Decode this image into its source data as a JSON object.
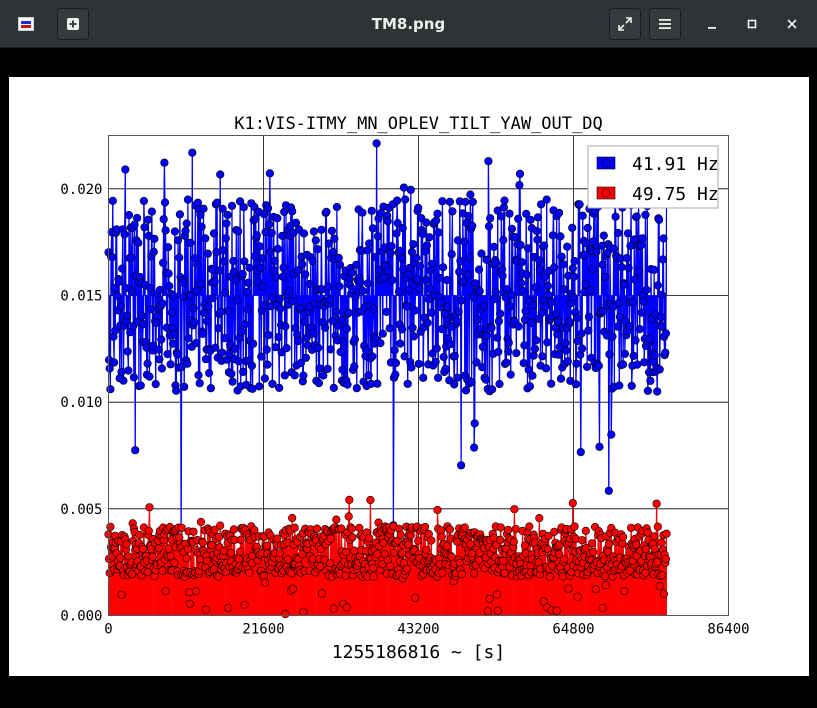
{
  "window": {
    "title": "TM8.png",
    "icons": {
      "app": "image-viewer-app-icon",
      "new": "new-tab-icon",
      "fullscreen": "fullscreen-icon",
      "menu": "hamburger-menu-icon",
      "minimize": "minimize-icon",
      "maximize": "maximize-icon",
      "close": "close-icon"
    }
  },
  "chart_data": {
    "type": "line",
    "title": "K1:VIS-ITMY_MN_OPLEV_TILT_YAW_OUT_DQ",
    "xlabel": "1255186816 ~ [s]",
    "ylabel": "",
    "xlim": [
      0,
      86400
    ],
    "ylim": [
      0,
      0.0225
    ],
    "x_ticks": [
      0,
      21600,
      43200,
      64800,
      86400
    ],
    "x_tick_labels": [
      "0",
      "21600",
      "43200",
      "64800",
      "86400"
    ],
    "y_ticks": [
      0.0,
      0.005,
      0.01,
      0.015,
      0.02
    ],
    "y_tick_labels": [
      "0.000",
      "0.005",
      "0.010",
      "0.015",
      "0.020"
    ],
    "grid": true,
    "legend_position": "top-right",
    "series": [
      {
        "name": "41.91 Hz",
        "color": "#0000ff",
        "baseline": 0.015,
        "typical_range": [
          0.0105,
          0.0195
        ],
        "min": 0.0021,
        "max": 0.0225,
        "marker": "circle",
        "stem_style": true
      },
      {
        "name": "49.75 Hz",
        "color": "#ff0000",
        "baseline": 0.0,
        "typical_range": [
          0.0018,
          0.0042
        ],
        "min": 0.0,
        "max": 0.0055,
        "marker": "circle",
        "stem_style": true
      }
    ]
  }
}
